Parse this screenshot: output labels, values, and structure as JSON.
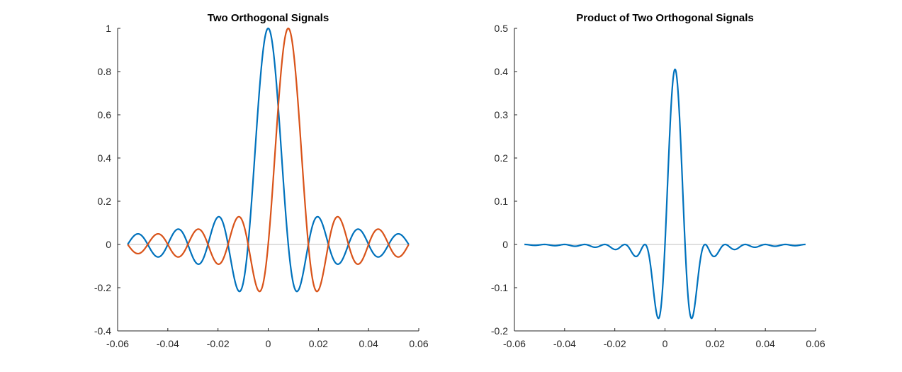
{
  "chart_data": [
    {
      "type": "line",
      "title": "Two Orthogonal Signals",
      "xlabel": "",
      "ylabel": "",
      "xlim": [
        -0.06,
        0.06
      ],
      "ylim": [
        -0.4,
        1
      ],
      "xticks": [
        -0.06,
        -0.04,
        -0.02,
        0,
        0.02,
        0.04,
        0.06
      ],
      "xtick_labels": [
        "-0.06",
        "-0.04",
        "-0.02",
        "0",
        "0.02",
        "0.04",
        "0.06"
      ],
      "yticks": [
        -0.4,
        -0.2,
        0,
        0.2,
        0.4,
        0.6,
        0.8,
        1
      ],
      "ytick_labels": [
        "-0.4",
        "-0.2",
        "0",
        "0.2",
        "0.4",
        "0.6",
        "0.8",
        "1"
      ],
      "grid": false,
      "zero_line": true,
      "series": [
        {
          "color": "#0072BD",
          "x": [
            -0.056,
            -0.052,
            -0.048,
            -0.044,
            -0.04,
            -0.036,
            -0.032,
            -0.028,
            -0.024,
            -0.02,
            -0.016,
            -0.012,
            -0.008,
            -0.004,
            0,
            0.004,
            0.008,
            0.012,
            0.016,
            0.02,
            0.024,
            0.028,
            0.032,
            0.036,
            0.04,
            0.044,
            0.048,
            0.052,
            0.056
          ],
          "y": [
            0.0,
            0.05,
            0.0,
            -0.06,
            0.0,
            0.07,
            0.0,
            -0.09,
            0.0,
            0.13,
            0.0,
            -0.21,
            0.0,
            0.64,
            1.0,
            0.64,
            0.0,
            -0.21,
            0.0,
            0.13,
            0.0,
            -0.09,
            0.0,
            0.07,
            0.0,
            -0.06,
            0.0,
            0.05,
            0.0
          ]
        },
        {
          "color": "#D95319",
          "x": [
            -0.056,
            -0.052,
            -0.048,
            -0.044,
            -0.04,
            -0.036,
            -0.032,
            -0.028,
            -0.024,
            -0.02,
            -0.016,
            -0.012,
            -0.008,
            -0.004,
            0,
            0.004,
            0.008,
            0.012,
            0.016,
            0.02,
            0.024,
            0.028,
            0.032,
            0.036,
            0.04,
            0.044,
            0.048,
            0.052,
            0.056
          ],
          "y": [
            0.0,
            -0.04,
            0.0,
            0.05,
            0.0,
            -0.06,
            0.0,
            0.07,
            0.0,
            -0.09,
            0.0,
            0.13,
            0.0,
            -0.21,
            0.0,
            0.64,
            1.0,
            0.64,
            0.0,
            -0.21,
            0.0,
            0.13,
            0.0,
            -0.09,
            0.0,
            0.07,
            0.0,
            -0.06,
            0.0
          ]
        }
      ]
    },
    {
      "type": "line",
      "title": "Product of Two Orthogonal Signals",
      "xlabel": "",
      "ylabel": "",
      "xlim": [
        -0.06,
        0.06
      ],
      "ylim": [
        -0.2,
        0.5
      ],
      "xticks": [
        -0.06,
        -0.04,
        -0.02,
        0,
        0.02,
        0.04,
        0.06
      ],
      "xtick_labels": [
        "-0.06",
        "-0.04",
        "-0.02",
        "0",
        "0.02",
        "0.04",
        "0.06"
      ],
      "yticks": [
        -0.2,
        -0.1,
        0,
        0.1,
        0.2,
        0.3,
        0.4,
        0.5
      ],
      "ytick_labels": [
        "-0.2",
        "-0.1",
        "0",
        "0.1",
        "0.2",
        "0.3",
        "0.4",
        "0.5"
      ],
      "grid": false,
      "zero_line": true,
      "series": [
        {
          "color": "#0072BD",
          "x": [
            -0.056,
            -0.05,
            -0.046,
            -0.042,
            -0.038,
            -0.034,
            -0.03,
            -0.026,
            -0.022,
            -0.018,
            -0.014,
            -0.01,
            -0.008,
            -0.006,
            -0.004,
            -0.002,
            0,
            0.002,
            0.004,
            0.006,
            0.008,
            0.01,
            0.012,
            0.014,
            0.016,
            0.018,
            0.022,
            0.026,
            0.03,
            0.034,
            0.038,
            0.042,
            0.046,
            0.05,
            0.056
          ],
          "y": [
            0.0,
            -0.002,
            0.0,
            -0.003,
            0.0,
            -0.004,
            0.0,
            -0.006,
            0.0,
            -0.01,
            0.0,
            -0.025,
            0.0,
            -0.07,
            -0.15,
            -0.17,
            0.0,
            0.3,
            0.405,
            0.3,
            0.0,
            -0.17,
            -0.15,
            -0.07,
            0.0,
            -0.025,
            0.0,
            -0.01,
            0.0,
            -0.006,
            0.0,
            -0.004,
            0.0,
            -0.002,
            0.0
          ]
        }
      ]
    }
  ]
}
